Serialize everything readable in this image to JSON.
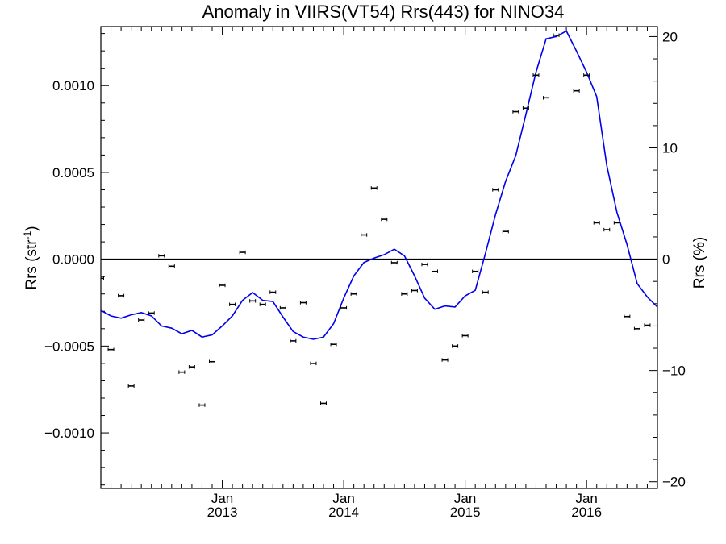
{
  "chart_data": {
    "type": "scatter",
    "title": "Anomaly in VIIRS(VT54) Rrs(443) for NINO34",
    "ylabel_base": "Rrs (str",
    "ylabel_sup": "-1",
    "ylabel_tail": ")",
    "y2label": "Rrs (%)",
    "x_start": "2012-01",
    "x_end": "2016-08",
    "ylim": [
      -0.00132,
      0.00134
    ],
    "y2lim": [
      -20.6,
      20.9
    ],
    "yticks": [
      {
        "v": 0.001,
        "label": "0.0010"
      },
      {
        "v": 0.0005,
        "label": "0.0005"
      },
      {
        "v": 0.0,
        "label": "0.0000"
      },
      {
        "v": -0.0005,
        "label": "−0.0005"
      },
      {
        "v": -0.001,
        "label": "−0.0010"
      }
    ],
    "y2ticks": [
      {
        "v": 20,
        "label": "20"
      },
      {
        "v": 10,
        "label": "10"
      },
      {
        "v": 0,
        "label": "0"
      },
      {
        "v": -10,
        "label": "−10"
      },
      {
        "v": -20,
        "label": "−20"
      }
    ],
    "xticks": [
      {
        "date": "2013-01",
        "month": "Jan",
        "year": "2013"
      },
      {
        "date": "2014-01",
        "month": "Jan",
        "year": "2014"
      },
      {
        "date": "2015-01",
        "month": "Jan",
        "year": "2015"
      },
      {
        "date": "2016-01",
        "month": "Jan",
        "year": "2016"
      }
    ],
    "zero_line": 0,
    "series": [
      {
        "kind": "points_with_errorbars",
        "axis": "left",
        "color": "#000000",
        "points": [
          {
            "x": "2012-01",
            "y": -0.00011
          },
          {
            "x": "2012-02",
            "y": -0.00052
          },
          {
            "x": "2012-03",
            "y": -0.00021
          },
          {
            "x": "2012-04",
            "y": -0.00073
          },
          {
            "x": "2012-05",
            "y": -0.00035
          },
          {
            "x": "2012-06",
            "y": -0.00031
          },
          {
            "x": "2012-07",
            "y": 2e-05
          },
          {
            "x": "2012-08",
            "y": -4e-05
          },
          {
            "x": "2012-09",
            "y": -0.00065
          },
          {
            "x": "2012-10",
            "y": -0.00062
          },
          {
            "x": "2012-11",
            "y": -0.00084
          },
          {
            "x": "2012-12",
            "y": -0.00059
          },
          {
            "x": "2013-01",
            "y": -0.00015
          },
          {
            "x": "2013-02",
            "y": -0.00026
          },
          {
            "x": "2013-03",
            "y": 4e-05
          },
          {
            "x": "2013-04",
            "y": -0.00024
          },
          {
            "x": "2013-05",
            "y": -0.00026
          },
          {
            "x": "2013-06",
            "y": -0.00019
          },
          {
            "x": "2013-07",
            "y": -0.00028
          },
          {
            "x": "2013-08",
            "y": -0.00047
          },
          {
            "x": "2013-09",
            "y": -0.00025
          },
          {
            "x": "2013-10",
            "y": -0.0006
          },
          {
            "x": "2013-11",
            "y": -0.00083
          },
          {
            "x": "2013-12",
            "y": -0.00049
          },
          {
            "x": "2014-01",
            "y": -0.00028
          },
          {
            "x": "2014-02",
            "y": -0.0002
          },
          {
            "x": "2014-03",
            "y": 0.00014
          },
          {
            "x": "2014-04",
            "y": 0.00041
          },
          {
            "x": "2014-05",
            "y": 0.00023
          },
          {
            "x": "2014-06",
            "y": -2e-05
          },
          {
            "x": "2014-07",
            "y": -0.0002
          },
          {
            "x": "2014-08",
            "y": -0.00018
          },
          {
            "x": "2014-09",
            "y": -3e-05
          },
          {
            "x": "2014-10",
            "y": -7e-05
          },
          {
            "x": "2014-11",
            "y": -0.00058
          },
          {
            "x": "2014-12",
            "y": -0.0005
          },
          {
            "x": "2015-01",
            "y": -0.00044
          },
          {
            "x": "2015-02",
            "y": -7e-05
          },
          {
            "x": "2015-03",
            "y": -0.00019
          },
          {
            "x": "2015-04",
            "y": 0.0004
          },
          {
            "x": "2015-05",
            "y": 0.00016
          },
          {
            "x": "2015-06",
            "y": 0.00085
          },
          {
            "x": "2015-07",
            "y": 0.00087
          },
          {
            "x": "2015-08",
            "y": 0.00106
          },
          {
            "x": "2015-09",
            "y": 0.00093
          },
          {
            "x": "2015-10",
            "y": 0.00129
          },
          {
            "x": "2015-12",
            "y": 0.00097
          },
          {
            "x": "2016-01",
            "y": 0.00106
          },
          {
            "x": "2016-02",
            "y": 0.00021
          },
          {
            "x": "2016-03",
            "y": 0.00017
          },
          {
            "x": "2016-04",
            "y": 0.00021
          },
          {
            "x": "2016-05",
            "y": -0.00033
          },
          {
            "x": "2016-06",
            "y": -0.0004
          },
          {
            "x": "2016-07",
            "y": -0.00038
          }
        ]
      },
      {
        "kind": "line",
        "axis": "right",
        "color": "#0000ee",
        "points": [
          {
            "x": "2012-01",
            "y": -4.6
          },
          {
            "x": "2012-02",
            "y": -5.1
          },
          {
            "x": "2012-03",
            "y": -5.3
          },
          {
            "x": "2012-04",
            "y": -5.0
          },
          {
            "x": "2012-05",
            "y": -4.8
          },
          {
            "x": "2012-06",
            "y": -5.1
          },
          {
            "x": "2012-07",
            "y": -6.0
          },
          {
            "x": "2012-08",
            "y": -6.2
          },
          {
            "x": "2012-09",
            "y": -6.7
          },
          {
            "x": "2012-10",
            "y": -6.4
          },
          {
            "x": "2012-11",
            "y": -7.0
          },
          {
            "x": "2012-12",
            "y": -6.8
          },
          {
            "x": "2013-01",
            "y": -6.0
          },
          {
            "x": "2013-02",
            "y": -5.1
          },
          {
            "x": "2013-03",
            "y": -3.7
          },
          {
            "x": "2013-04",
            "y": -3.0
          },
          {
            "x": "2013-05",
            "y": -3.7
          },
          {
            "x": "2013-06",
            "y": -3.8
          },
          {
            "x": "2013-07",
            "y": -5.2
          },
          {
            "x": "2013-08",
            "y": -6.5
          },
          {
            "x": "2013-09",
            "y": -7.0
          },
          {
            "x": "2013-10",
            "y": -7.2
          },
          {
            "x": "2013-11",
            "y": -7.0
          },
          {
            "x": "2013-12",
            "y": -5.8
          },
          {
            "x": "2014-01",
            "y": -3.5
          },
          {
            "x": "2014-02",
            "y": -1.5
          },
          {
            "x": "2014-03",
            "y": -0.3
          },
          {
            "x": "2014-04",
            "y": 0.1
          },
          {
            "x": "2014-05",
            "y": 0.4
          },
          {
            "x": "2014-06",
            "y": 0.9
          },
          {
            "x": "2014-07",
            "y": 0.3
          },
          {
            "x": "2014-08",
            "y": -1.5
          },
          {
            "x": "2014-09",
            "y": -3.5
          },
          {
            "x": "2014-10",
            "y": -4.5
          },
          {
            "x": "2014-11",
            "y": -4.2
          },
          {
            "x": "2014-12",
            "y": -4.3
          },
          {
            "x": "2015-01",
            "y": -3.3
          },
          {
            "x": "2015-02",
            "y": -2.8
          },
          {
            "x": "2015-03",
            "y": 0.5
          },
          {
            "x": "2015-04",
            "y": 4.0
          },
          {
            "x": "2015-05",
            "y": 7.0
          },
          {
            "x": "2015-06",
            "y": 9.3
          },
          {
            "x": "2015-07",
            "y": 13.0
          },
          {
            "x": "2015-08",
            "y": 16.8
          },
          {
            "x": "2015-09",
            "y": 19.8
          },
          {
            "x": "2015-10",
            "y": 20.0
          },
          {
            "x": "2015-11",
            "y": 20.5
          },
          {
            "x": "2015-12",
            "y": 18.7
          },
          {
            "x": "2016-01",
            "y": 16.8
          },
          {
            "x": "2016-02",
            "y": 14.6
          },
          {
            "x": "2016-03",
            "y": 8.4
          },
          {
            "x": "2016-04",
            "y": 4.2
          },
          {
            "x": "2016-05",
            "y": 1.3
          },
          {
            "x": "2016-06",
            "y": -2.2
          },
          {
            "x": "2016-07",
            "y": -3.4
          },
          {
            "x": "2016-08",
            "y": -4.3
          }
        ]
      }
    ]
  }
}
